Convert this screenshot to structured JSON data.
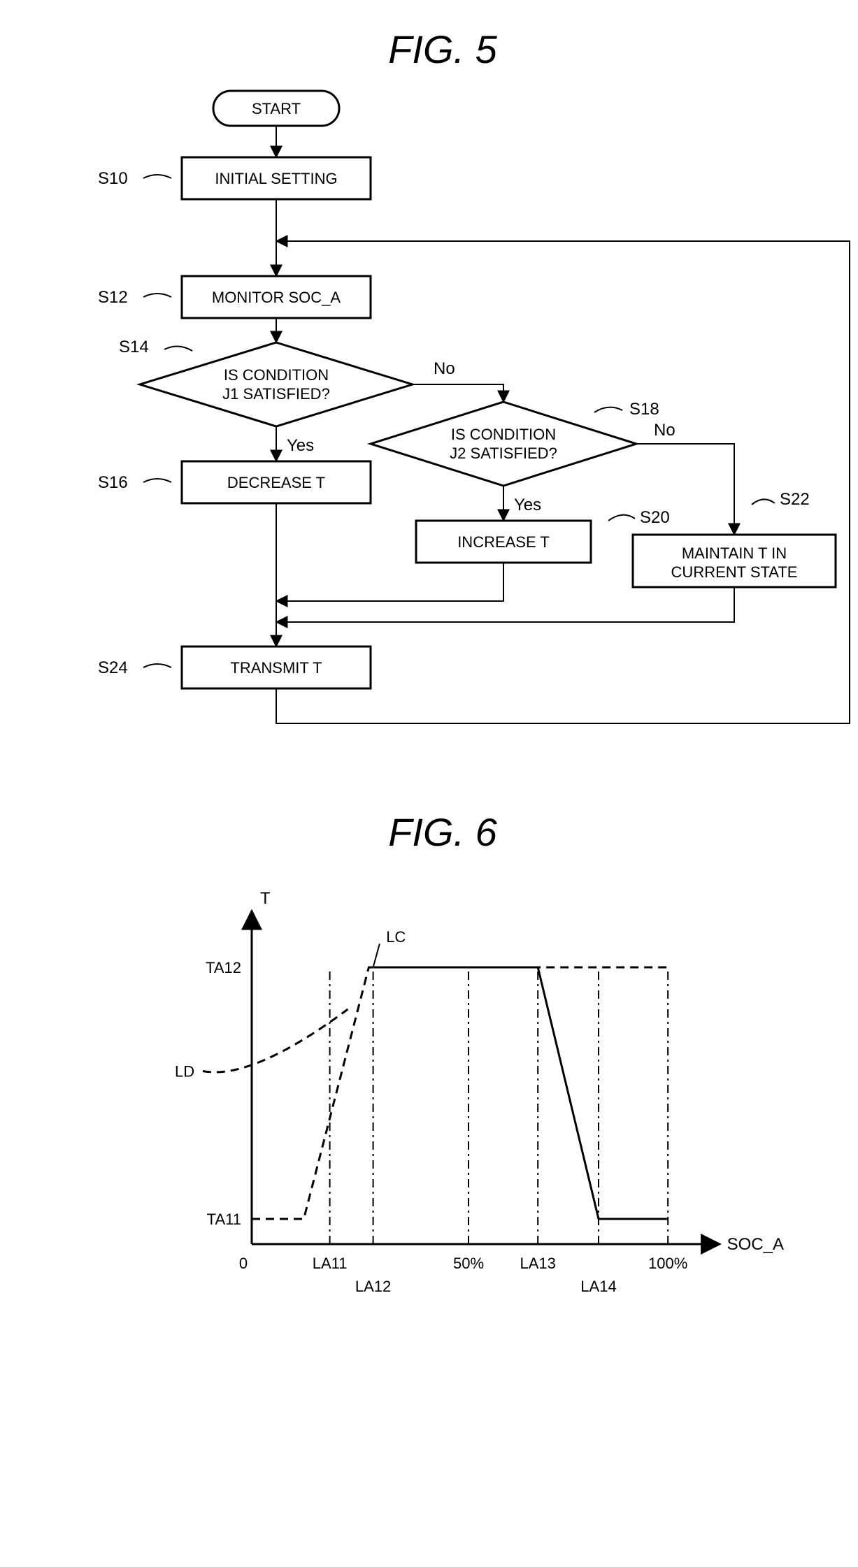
{
  "fig5": {
    "title": "FIG. 5",
    "title_fontsize": 56,
    "node_fontsize": 22,
    "callout_fontsize": 24,
    "decision_label_fontsize": 22,
    "nodes": {
      "start": {
        "type": "terminal",
        "label": "START"
      },
      "s10": {
        "type": "process",
        "label": "INITIAL SETTING",
        "callout": "S10"
      },
      "s12": {
        "type": "process",
        "label": "MONITOR SOC_A",
        "callout": "S12"
      },
      "s14": {
        "type": "decision",
        "label1": "IS CONDITION",
        "label2": "J1 SATISFIED?",
        "callout": "S14",
        "yes": "Yes",
        "no": "No"
      },
      "s16": {
        "type": "process",
        "label": "DECREASE T",
        "callout": "S16"
      },
      "s18": {
        "type": "decision",
        "label1": "IS CONDITION",
        "label2": "J2 SATISFIED?",
        "callout": "S18",
        "yes": "Yes",
        "no": "No"
      },
      "s20": {
        "type": "process",
        "label": "INCREASE T",
        "callout": "S20"
      },
      "s22": {
        "type": "process",
        "label1": "MAINTAIN T IN",
        "label2": "CURRENT STATE",
        "callout": "S22"
      },
      "s24": {
        "type": "process",
        "label": "TRANSMIT T",
        "callout": "S24"
      }
    }
  },
  "fig6": {
    "title": "FIG. 6",
    "title_fontsize": 56,
    "axis_label_fontsize": 24,
    "tick_fontsize": 22,
    "y_label": "T",
    "x_label": "SOC_A",
    "y_ticks": [
      {
        "key": "TA11",
        "label": "TA11",
        "value": 0.08
      },
      {
        "key": "TA12",
        "label": "TA12",
        "value": 0.88
      }
    ],
    "x_ticks": [
      {
        "key": "0",
        "label": "0",
        "value": 0.0,
        "guide": false
      },
      {
        "key": "LA11",
        "label": "LA11",
        "value": 0.18,
        "guide": true
      },
      {
        "key": "LA12",
        "label": "LA12",
        "value": 0.28,
        "guide": true
      },
      {
        "key": "50",
        "label": "50%",
        "value": 0.5,
        "guide": true
      },
      {
        "key": "LA13",
        "label": "LA13",
        "value": 0.66,
        "guide": true
      },
      {
        "key": "LA14",
        "label": "LA14",
        "value": 0.8,
        "guide": true
      },
      {
        "key": "100",
        "label": "100%",
        "value": 0.96,
        "guide": true
      }
    ],
    "series": {
      "LC": {
        "label": "LC",
        "style": "solid",
        "points": [
          {
            "x": 0.28,
            "y": 0.88
          },
          {
            "x": 0.66,
            "y": 0.88
          },
          {
            "x": 0.8,
            "y": 0.08
          },
          {
            "x": 0.96,
            "y": 0.08
          }
        ]
      },
      "LD": {
        "label": "LD",
        "style": "dashed",
        "points": [
          {
            "x": 0.0,
            "y": 0.08
          },
          {
            "x": 0.12,
            "y": 0.08
          },
          {
            "x": 0.27,
            "y": 0.88
          },
          {
            "x": 0.96,
            "y": 0.88
          }
        ]
      }
    },
    "colors": {
      "ink": "#000000",
      "bg": "#ffffff"
    }
  }
}
